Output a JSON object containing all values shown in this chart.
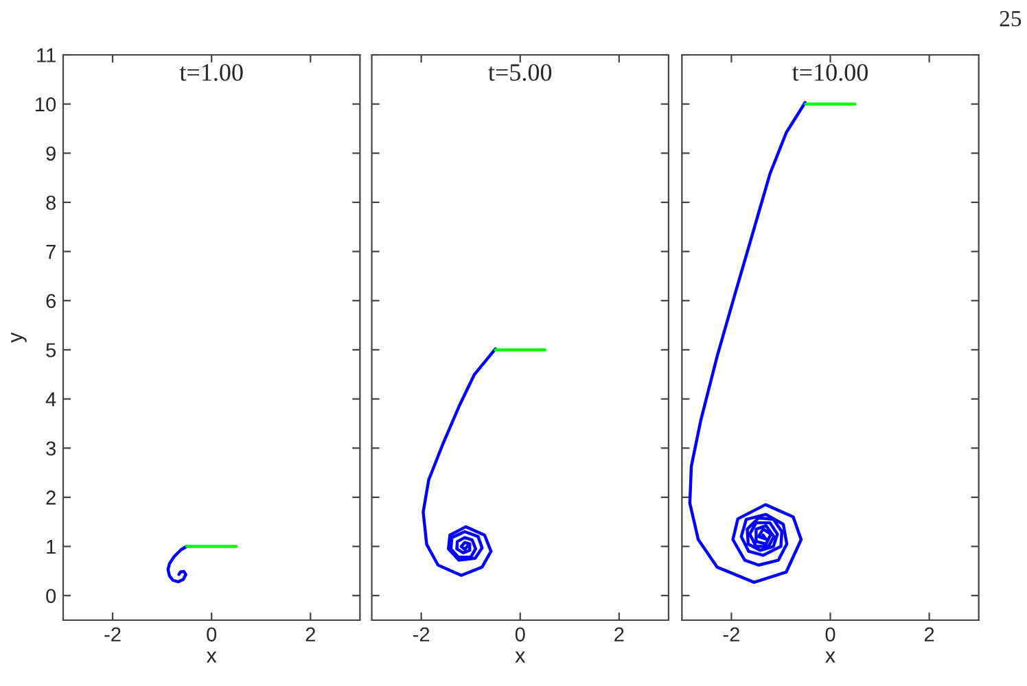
{
  "chart_data": [
    {
      "type": "line",
      "title": "t=1.00",
      "xlabel": "x",
      "ylabel": "y",
      "xlim": [
        -3,
        3
      ],
      "ylim": [
        -0.5,
        11
      ],
      "xticks": [
        -2,
        0,
        2
      ],
      "yticks": [
        0,
        1,
        2,
        3,
        4,
        5,
        6,
        7,
        8,
        9,
        10,
        11
      ],
      "grid": false,
      "legend": false,
      "series": [
        {
          "color": "#0000ff",
          "x": [
            -0.5,
            -0.62,
            -0.75,
            -0.85,
            -0.88,
            -0.85,
            -0.78,
            -0.67,
            -0.57,
            -0.52,
            -0.56,
            -0.63,
            -0.66
          ],
          "values": [
            1,
            0.93,
            0.8,
            0.65,
            0.53,
            0.4,
            0.31,
            0.28,
            0.33,
            0.43,
            0.49,
            0.48,
            0.43
          ]
        },
        {
          "color": "#00ff00",
          "x": [
            -0.5,
            0.5
          ],
          "values": [
            1,
            1
          ]
        }
      ]
    },
    {
      "type": "line",
      "title": "t=5.00",
      "xlabel": "x",
      "xlim": [
        -3,
        3
      ],
      "ylim": [
        -0.5,
        11
      ],
      "xticks": [
        -2,
        0,
        2
      ],
      "yticks": [
        {
          "value": 0,
          "label": null
        },
        {
          "value": 1,
          "label": null
        },
        {
          "value": 2,
          "label": null
        },
        {
          "value": 3,
          "label": null
        },
        {
          "value": 4,
          "label": null
        },
        {
          "value": 5,
          "label": null
        },
        {
          "value": 6,
          "label": null
        },
        {
          "value": 7,
          "label": null
        },
        {
          "value": 8,
          "label": null
        },
        {
          "value": 9,
          "label": null
        },
        {
          "value": 10,
          "label": null
        },
        {
          "value": 11,
          "label": null
        }
      ],
      "tick_labels": "x",
      "grid": false,
      "legend": false,
      "series": [
        {
          "color": "#0000ff",
          "x": [
            -0.5,
            -0.93,
            -1.24,
            -1.56,
            -1.85,
            -1.96,
            -1.89,
            -1.66,
            -1.19,
            -0.77,
            -0.59,
            -0.72,
            -1.1,
            -1.42,
            -1.45,
            -1.24,
            -0.91,
            -0.77,
            -0.85,
            -1.12,
            -1.38,
            -1.4,
            -1.25,
            -1.0,
            -0.9,
            -0.97,
            -1.12,
            -1.27,
            -1.28,
            -1.15,
            -1.02,
            -1.02,
            -1.12,
            -1.19,
            -1.12,
            -1.07
          ],
          "values": [
            5.02,
            4.49,
            3.84,
            3.09,
            2.35,
            1.7,
            1.04,
            0.62,
            0.41,
            0.58,
            0.9,
            1.23,
            1.4,
            1.23,
            0.95,
            0.72,
            0.76,
            0.97,
            1.2,
            1.3,
            1.18,
            0.95,
            0.78,
            0.78,
            0.95,
            1.13,
            1.18,
            1.1,
            0.95,
            0.87,
            0.92,
            1.05,
            1.08,
            1.0,
            0.94,
            1.0
          ]
        },
        {
          "color": "#00ff00",
          "x": [
            -0.5,
            0.5
          ],
          "values": [
            5,
            5
          ]
        }
      ]
    },
    {
      "type": "line",
      "title": "t=10.00",
      "xlabel": "x",
      "xlim": [
        -3,
        3
      ],
      "ylim": [
        -0.5,
        11
      ],
      "xticks": [
        -2,
        0,
        2
      ],
      "yticks": [
        {
          "value": 0,
          "label": null
        },
        {
          "value": 1,
          "label": null
        },
        {
          "value": 2,
          "label": null
        },
        {
          "value": 3,
          "label": null
        },
        {
          "value": 4,
          "label": null
        },
        {
          "value": 5,
          "label": null
        },
        {
          "value": 6,
          "label": null
        },
        {
          "value": 7,
          "label": null
        },
        {
          "value": 8,
          "label": null
        },
        {
          "value": 9,
          "label": null
        },
        {
          "value": 10,
          "label": null
        },
        {
          "value": 11,
          "label": null
        }
      ],
      "tick_labels": "x",
      "grid": false,
      "legend": false,
      "annotations": [
        "25"
      ],
      "series": [
        {
          "color": "#0000ff",
          "x": [
            -0.51,
            -0.89,
            -1.22,
            -1.54,
            -1.92,
            -2.29,
            -2.62,
            -2.81,
            -2.84,
            -2.67,
            -2.29,
            -1.54,
            -0.89,
            -0.59,
            -0.75,
            -1.31,
            -1.87,
            -1.97,
            -1.73,
            -1.45,
            -1.05,
            -0.88,
            -0.95,
            -1.3,
            -1.7,
            -1.8,
            -1.65,
            -1.36,
            -1.0,
            -0.98,
            -1.15,
            -1.45,
            -1.68,
            -1.66,
            -1.42,
            -1.15,
            -1.07,
            -1.22,
            -1.5,
            -1.63,
            -1.5,
            -1.25,
            -1.14,
            -1.3,
            -1.5,
            -1.5,
            -1.3,
            -1.2,
            -1.36,
            -1.45,
            -1.3,
            -1.36
          ],
          "values": [
            10.03,
            9.42,
            8.58,
            7.47,
            6.16,
            4.86,
            3.56,
            2.63,
            1.88,
            1.14,
            0.58,
            0.27,
            0.48,
            1.14,
            1.6,
            1.85,
            1.56,
            1.14,
            0.72,
            0.62,
            0.72,
            1.05,
            1.45,
            1.65,
            1.55,
            1.2,
            0.9,
            0.82,
            1.0,
            1.3,
            1.55,
            1.58,
            1.35,
            1.05,
            0.92,
            1.0,
            1.25,
            1.48,
            1.48,
            1.25,
            1.0,
            1.0,
            1.2,
            1.42,
            1.35,
            1.1,
            1.05,
            1.25,
            1.35,
            1.2,
            1.15,
            1.23
          ]
        },
        {
          "color": "#00ff00",
          "x": [
            -0.5,
            0.5
          ],
          "values": [
            10,
            10
          ]
        }
      ]
    }
  ]
}
